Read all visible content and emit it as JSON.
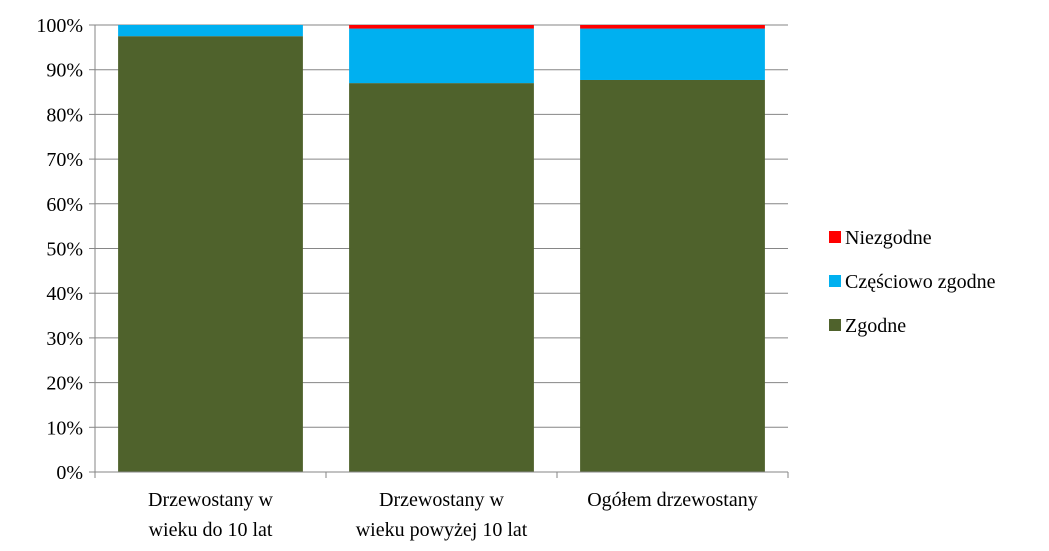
{
  "chart_data": {
    "type": "bar",
    "stacked": true,
    "title": "",
    "xlabel": "",
    "ylabel": "",
    "ylim": [
      0,
      100
    ],
    "y_ticks": [
      "0%",
      "10%",
      "20%",
      "30%",
      "40%",
      "50%",
      "60%",
      "70%",
      "80%",
      "90%",
      "100%"
    ],
    "categories": [
      [
        "Drzewostany w",
        "wieku do 10 lat"
      ],
      [
        "Drzewostany w",
        "wieku powyżej 10 lat"
      ],
      [
        "Ogółem drzewostany"
      ]
    ],
    "series": [
      {
        "name": "Zgodne",
        "color": "#4F622C",
        "values": [
          97.5,
          87.0,
          87.7
        ]
      },
      {
        "name": "Częściowo zgodne",
        "color": "#00B0F0",
        "values": [
          2.5,
          12.2,
          11.5
        ]
      },
      {
        "name": "Niezgodne",
        "color": "#FF0000",
        "values": [
          0.0,
          0.8,
          0.8
        ]
      }
    ],
    "legend_order": [
      "Niezgodne",
      "Częściowo zgodne",
      "Zgodne"
    ],
    "legend_position": "right",
    "grid": "horizontal"
  }
}
